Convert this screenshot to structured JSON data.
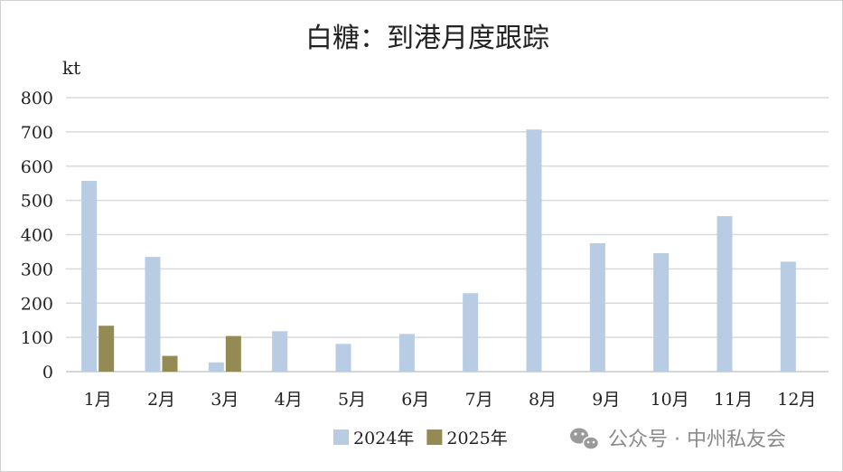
{
  "chart_data": {
    "type": "bar",
    "title": "白糖：到港月度跟踪",
    "ylabel": "kt",
    "ylim": [
      0,
      800
    ],
    "yticks": [
      0,
      100,
      200,
      300,
      400,
      500,
      600,
      700,
      800
    ],
    "grid": true,
    "legend_position": "bottom",
    "categories": [
      "1月",
      "2月",
      "3月",
      "4月",
      "5月",
      "6月",
      "7月",
      "8月",
      "9月",
      "10月",
      "11月",
      "12月"
    ],
    "series": [
      {
        "name": "2024年",
        "color": "#b8cce4",
        "values": [
          557,
          335,
          27,
          118,
          81,
          110,
          229,
          707,
          375,
          346,
          454,
          321
        ]
      },
      {
        "name": "2025年",
        "color": "#948a54",
        "values": [
          134,
          46,
          104,
          null,
          null,
          null,
          null,
          null,
          null,
          null,
          null,
          null
        ]
      }
    ]
  },
  "watermark": {
    "text": "公众号 · 中州私友会",
    "icon": "wechat-icon"
  }
}
